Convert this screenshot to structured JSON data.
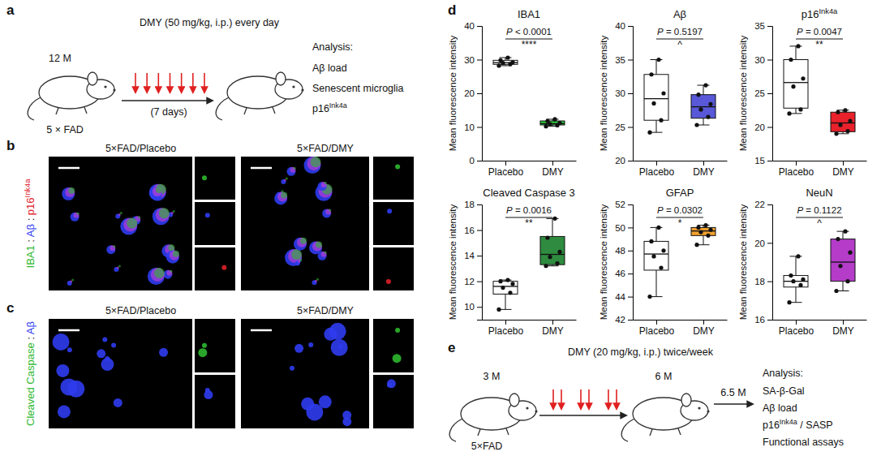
{
  "panels": {
    "a": {
      "letter": "a",
      "treatment": "DMY (50 mg/kg, i.p.) every day",
      "age": "12 M",
      "model": "5 × FAD",
      "duration": "(7 days)",
      "doses": 7,
      "analysis_title": "Analysis:",
      "analysis": [
        [
          {
            "text": "Aβ load"
          }
        ],
        [
          {
            "text": "Senescent microglia"
          }
        ],
        [
          {
            "text": "p16"
          },
          {
            "text": "Ink4a",
            "sup": true
          }
        ]
      ]
    },
    "b": {
      "letter": "b",
      "titles": [
        "5×FAD/Placebo",
        "5×FAD/DMY"
      ],
      "stain": [
        {
          "text": "IBA1",
          "color": "#2db82d"
        },
        {
          "text": " : "
        },
        {
          "text": "Aβ",
          "color": "#2f3cf0"
        },
        {
          "text": " : "
        },
        {
          "text": "p16",
          "color": "#e0202a"
        },
        {
          "text": "Ink4a",
          "sup": true,
          "color": "#e0202a"
        }
      ]
    },
    "c": {
      "letter": "c",
      "titles": [
        "5×FAD/Placebo",
        "5×FAD/DMY"
      ],
      "stain": [
        {
          "text": "Cleaved Caspase",
          "color": "#2db82d"
        },
        {
          "text": " : "
        },
        {
          "text": "Aβ",
          "color": "#2f3cf0"
        }
      ]
    },
    "d": {
      "letter": "d"
    },
    "e": {
      "letter": "e",
      "treatment": "DMY (20 mg/kg, i.p.) twice/week",
      "start_age": "3 M",
      "model": "5×FAD",
      "end_age": "6 M",
      "analysis_age": "6.5 M",
      "doses": 6,
      "analysis_title": "Analysis:",
      "analysis": [
        [
          {
            "text": "SA-β-Gal"
          }
        ],
        [
          {
            "text": "Aβ load"
          }
        ],
        [
          {
            "text": "p16"
          },
          {
            "text": "Ink4a",
            "sup": true
          },
          {
            "text": " / SASP"
          }
        ],
        [
          {
            "text": "Functional assays"
          }
        ]
      ]
    }
  },
  "chart_data": [
    {
      "type": "box",
      "title": [
        {
          "text": "IBA1"
        }
      ],
      "ylabel": "Mean fluorescence intensity",
      "categories": [
        "Placebo",
        "DMY"
      ],
      "colors": [
        "#ffffff",
        "#2ecc40"
      ],
      "boxes": [
        {
          "min": 28.2,
          "q1": 28.6,
          "median": 29.1,
          "q3": 29.8,
          "max": 30.6,
          "points": [
            28.2,
            28.7,
            29.0,
            29.2,
            29.8,
            30.6
          ]
        },
        {
          "min": 10.2,
          "q1": 10.6,
          "median": 11.0,
          "q3": 11.8,
          "max": 12.3,
          "points": [
            10.2,
            10.5,
            10.9,
            11.2,
            11.8,
            12.3
          ]
        }
      ],
      "p_value": [
        {
          "text": "P",
          "italic": true
        },
        {
          "text": " < 0.0001"
        }
      ],
      "significance": "****",
      "ylim": [
        0,
        40
      ],
      "yticks": [
        0,
        10,
        20,
        30,
        40
      ]
    },
    {
      "type": "box",
      "title": [
        {
          "text": "Aβ"
        }
      ],
      "ylabel": "Mean fluorescence intensity",
      "categories": [
        "Placebo",
        "DMY"
      ],
      "colors": [
        "#ffffff",
        "#5858d8"
      ],
      "boxes": [
        {
          "min": 24.2,
          "q1": 26.0,
          "median": 29.2,
          "q3": 32.8,
          "max": 35.0,
          "points": [
            24.2,
            26.0,
            28.5,
            30.0,
            32.8,
            35.0
          ]
        },
        {
          "min": 25.3,
          "q1": 26.3,
          "median": 28.0,
          "q3": 29.8,
          "max": 31.2,
          "points": [
            25.3,
            26.5,
            27.6,
            28.4,
            29.8,
            31.2
          ]
        }
      ],
      "p_value": [
        {
          "text": "P",
          "italic": true
        },
        {
          "text": " = 0.5197"
        }
      ],
      "significance": "^",
      "ylim": [
        20,
        40
      ],
      "yticks": [
        20,
        25,
        30,
        35,
        40
      ]
    },
    {
      "type": "box",
      "title": [
        {
          "text": "p16"
        },
        {
          "text": "Ink4a",
          "sup": true
        }
      ],
      "ylabel": "Mean fluorescence intensity",
      "categories": [
        "Placebo",
        "DMY"
      ],
      "colors": [
        "#ffffff",
        "#e8212b"
      ],
      "boxes": [
        {
          "min": 22.0,
          "q1": 22.8,
          "median": 26.6,
          "q3": 30.0,
          "max": 32.0,
          "points": [
            22.0,
            22.6,
            26.0,
            27.2,
            30.0,
            32.0
          ]
        },
        {
          "min": 19.0,
          "q1": 19.3,
          "median": 20.6,
          "q3": 22.2,
          "max": 22.5,
          "points": [
            19.0,
            19.4,
            20.3,
            20.9,
            22.2,
            22.5
          ]
        }
      ],
      "p_value": [
        {
          "text": "P",
          "italic": true
        },
        {
          "text": " = 0.0047"
        }
      ],
      "significance": "**",
      "ylim": [
        15,
        35
      ],
      "yticks": [
        15,
        20,
        25,
        30,
        35
      ]
    },
    {
      "type": "box",
      "title": [
        {
          "text": "Cleaved Caspase 3"
        }
      ],
      "ylabel": "Mean fluorescence intensity",
      "categories": [
        "Placebo",
        "DMY"
      ],
      "colors": [
        "#ffffff",
        "#2e8b3f"
      ],
      "boxes": [
        {
          "min": 9.8,
          "q1": 11.0,
          "median": 11.6,
          "q3": 12.0,
          "max": 12.1,
          "points": [
            9.8,
            11.1,
            11.5,
            11.8,
            12.0,
            12.1
          ]
        },
        {
          "min": 13.2,
          "q1": 13.3,
          "median": 14.1,
          "q3": 15.5,
          "max": 16.9,
          "points": [
            13.2,
            13.4,
            13.9,
            14.3,
            15.4,
            16.9
          ]
        }
      ],
      "p_value": [
        {
          "text": "P",
          "italic": true
        },
        {
          "text": " = 0.0016"
        }
      ],
      "significance": "**",
      "ylim": [
        9,
        18
      ],
      "yticks": [
        10,
        12,
        14,
        16,
        18
      ]
    },
    {
      "type": "box",
      "title": [
        {
          "text": "GFAP"
        }
      ],
      "ylabel": "Mean fluorescence intensity",
      "categories": [
        "Placebo",
        "DMY"
      ],
      "colors": [
        "#ffffff",
        "#f0a030"
      ],
      "boxes": [
        {
          "min": 44.0,
          "q1": 46.3,
          "median": 47.7,
          "q3": 48.8,
          "max": 50.0,
          "points": [
            44.0,
            46.5,
            47.5,
            48.0,
            48.8,
            50.0
          ]
        },
        {
          "min": 48.5,
          "q1": 49.3,
          "median": 49.7,
          "q3": 50.0,
          "max": 50.2,
          "points": [
            48.5,
            49.3,
            49.6,
            49.8,
            50.0,
            50.2
          ]
        }
      ],
      "p_value": [
        {
          "text": "P",
          "italic": true
        },
        {
          "text": " = 0.0302"
        }
      ],
      "significance": "*",
      "ylim": [
        42,
        52
      ],
      "yticks": [
        42,
        44,
        46,
        48,
        50,
        52
      ]
    },
    {
      "type": "box",
      "title": [
        {
          "text": "NeuN"
        }
      ],
      "ylabel": "Mean fluorescence intensity",
      "categories": [
        "Placebo",
        "DMY"
      ],
      "colors": [
        "#ffffff",
        "#b43cc8"
      ],
      "boxes": [
        {
          "min": 16.9,
          "q1": 17.7,
          "median": 18.0,
          "q3": 18.3,
          "max": 19.3,
          "points": [
            16.9,
            17.8,
            18.0,
            18.1,
            18.3,
            19.3
          ]
        },
        {
          "min": 17.5,
          "q1": 18.0,
          "median": 19.0,
          "q3": 20.2,
          "max": 20.6,
          "points": [
            17.5,
            18.0,
            18.8,
            19.5,
            20.2,
            20.6
          ]
        }
      ],
      "p_value": [
        {
          "text": "P",
          "italic": true
        },
        {
          "text": " = 0.1122"
        }
      ],
      "significance": "^",
      "ylim": [
        16,
        22
      ],
      "yticks": [
        16,
        18,
        20,
        22
      ]
    }
  ]
}
